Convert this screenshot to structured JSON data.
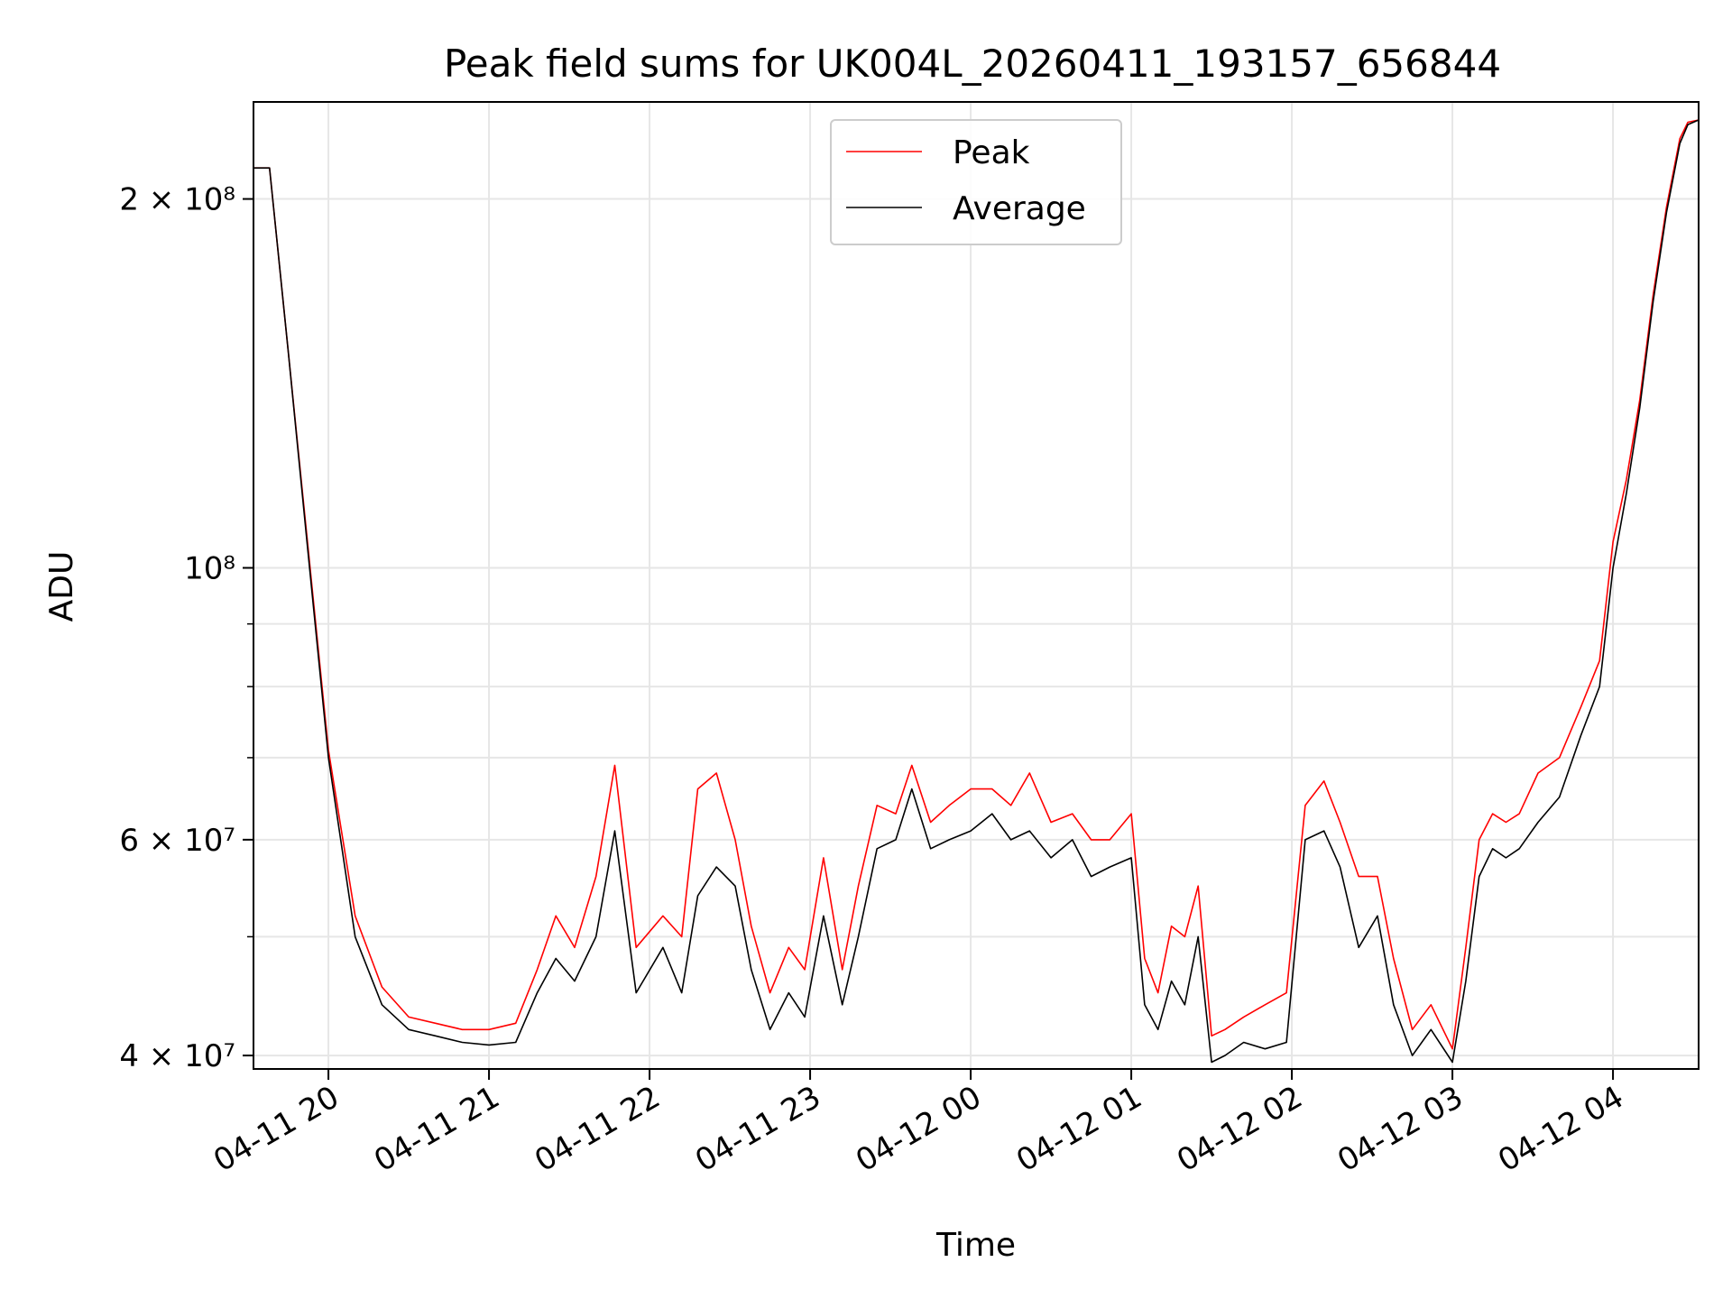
{
  "chart_data": {
    "type": "line",
    "title": "Peak field sums for UK004L_20260411_193157_656844",
    "xlabel": "Time",
    "ylabel": "ADU",
    "yscale": "log",
    "ylim": [
      39000000,
      240000000
    ],
    "xlim": [
      "2026-04-11 19:32",
      "2026-04-12 04:32"
    ],
    "grid": true,
    "legend_position": "upper center",
    "x_ticks": [
      "04-11 20",
      "04-11 21",
      "04-11 22",
      "04-11 23",
      "04-12 00",
      "04-12 01",
      "04-12 02",
      "04-12 03",
      "04-12 04"
    ],
    "y_ticks": [
      {
        "label": "4 × 10⁷",
        "value": 40000000
      },
      {
        "label": "6 × 10⁷",
        "value": 60000000
      },
      {
        "label": "10⁸",
        "value": 100000000
      },
      {
        "label": "2 × 10⁸",
        "value": 200000000
      }
    ],
    "y_minor_ticks": [
      50000000,
      70000000,
      80000000,
      90000000
    ],
    "x": [
      "2026-04-11 19:32",
      "2026-04-11 19:38",
      "2026-04-11 19:45",
      "2026-04-11 19:52",
      "2026-04-11 20:00",
      "2026-04-11 20:10",
      "2026-04-11 20:20",
      "2026-04-11 20:30",
      "2026-04-11 20:40",
      "2026-04-11 20:50",
      "2026-04-11 21:00",
      "2026-04-11 21:10",
      "2026-04-11 21:18",
      "2026-04-11 21:25",
      "2026-04-11 21:32",
      "2026-04-11 21:40",
      "2026-04-11 21:47",
      "2026-04-11 21:55",
      "2026-04-11 22:05",
      "2026-04-11 22:12",
      "2026-04-11 22:18",
      "2026-04-11 22:25",
      "2026-04-11 22:32",
      "2026-04-11 22:38",
      "2026-04-11 22:45",
      "2026-04-11 22:52",
      "2026-04-11 22:58",
      "2026-04-11 23:05",
      "2026-04-11 23:12",
      "2026-04-11 23:18",
      "2026-04-11 23:25",
      "2026-04-11 23:32",
      "2026-04-11 23:38",
      "2026-04-11 23:45",
      "2026-04-11 23:52",
      "2026-04-12 00:00",
      "2026-04-12 00:08",
      "2026-04-12 00:15",
      "2026-04-12 00:22",
      "2026-04-12 00:30",
      "2026-04-12 00:38",
      "2026-04-12 00:45",
      "2026-04-12 00:52",
      "2026-04-12 01:00",
      "2026-04-12 01:05",
      "2026-04-12 01:10",
      "2026-04-12 01:15",
      "2026-04-12 01:20",
      "2026-04-12 01:25",
      "2026-04-12 01:30",
      "2026-04-12 01:35",
      "2026-04-12 01:42",
      "2026-04-12 01:50",
      "2026-04-12 01:58",
      "2026-04-12 02:05",
      "2026-04-12 02:12",
      "2026-04-12 02:18",
      "2026-04-12 02:25",
      "2026-04-12 02:32",
      "2026-04-12 02:38",
      "2026-04-12 02:45",
      "2026-04-12 02:52",
      "2026-04-12 03:00",
      "2026-04-12 03:05",
      "2026-04-12 03:10",
      "2026-04-12 03:15",
      "2026-04-12 03:20",
      "2026-04-12 03:25",
      "2026-04-12 03:32",
      "2026-04-12 03:40",
      "2026-04-12 03:48",
      "2026-04-12 03:55",
      "2026-04-12 04:00",
      "2026-04-12 04:05",
      "2026-04-12 04:10",
      "2026-04-12 04:15",
      "2026-04-12 04:20",
      "2026-04-12 04:25",
      "2026-04-12 04:28",
      "2026-04-12 04:32"
    ],
    "series": [
      {
        "name": "Average",
        "color": "#000000",
        "values": [
          212000000,
          212000000,
          150000000,
          105000000,
          70000000,
          50000000,
          44000000,
          42000000,
          41500000,
          41000000,
          40800000,
          41000000,
          45000000,
          48000000,
          46000000,
          50000000,
          61000000,
          45000000,
          49000000,
          45000000,
          54000000,
          57000000,
          55000000,
          47000000,
          42000000,
          45000000,
          43000000,
          52000000,
          44000000,
          50000000,
          59000000,
          60000000,
          66000000,
          59000000,
          60000000,
          61000000,
          63000000,
          60000000,
          61000000,
          58000000,
          60000000,
          56000000,
          57000000,
          58000000,
          44000000,
          42000000,
          46000000,
          44000000,
          50000000,
          39500000,
          40000000,
          41000000,
          40500000,
          41000000,
          60000000,
          61000000,
          57000000,
          49000000,
          52000000,
          44000000,
          40000000,
          42000000,
          39500000,
          46000000,
          56000000,
          59000000,
          58000000,
          59000000,
          62000000,
          65000000,
          73000000,
          80000000,
          100000000,
          115000000,
          135000000,
          165000000,
          195000000,
          222000000,
          230000000,
          232000000
        ]
      },
      {
        "name": "Peak",
        "color": "#ff0000",
        "values": [
          212000000,
          212000000,
          150000000,
          106000000,
          71000000,
          52000000,
          45500000,
          43000000,
          42500000,
          42000000,
          42000000,
          42500000,
          47000000,
          52000000,
          49000000,
          56000000,
          69000000,
          49000000,
          52000000,
          50000000,
          66000000,
          68000000,
          60000000,
          51000000,
          45000000,
          49000000,
          47000000,
          58000000,
          47000000,
          55000000,
          64000000,
          63000000,
          69000000,
          62000000,
          64000000,
          66000000,
          66000000,
          64000000,
          68000000,
          62000000,
          63000000,
          60000000,
          60000000,
          63000000,
          48000000,
          45000000,
          51000000,
          50000000,
          55000000,
          41500000,
          42000000,
          43000000,
          44000000,
          45000000,
          64000000,
          67000000,
          62000000,
          56000000,
          56000000,
          48000000,
          42000000,
          44000000,
          40500000,
          49000000,
          60000000,
          63000000,
          62000000,
          63000000,
          68000000,
          70000000,
          77000000,
          84000000,
          105000000,
          118000000,
          137000000,
          167000000,
          197000000,
          224000000,
          231000000,
          232000000
        ]
      }
    ]
  }
}
